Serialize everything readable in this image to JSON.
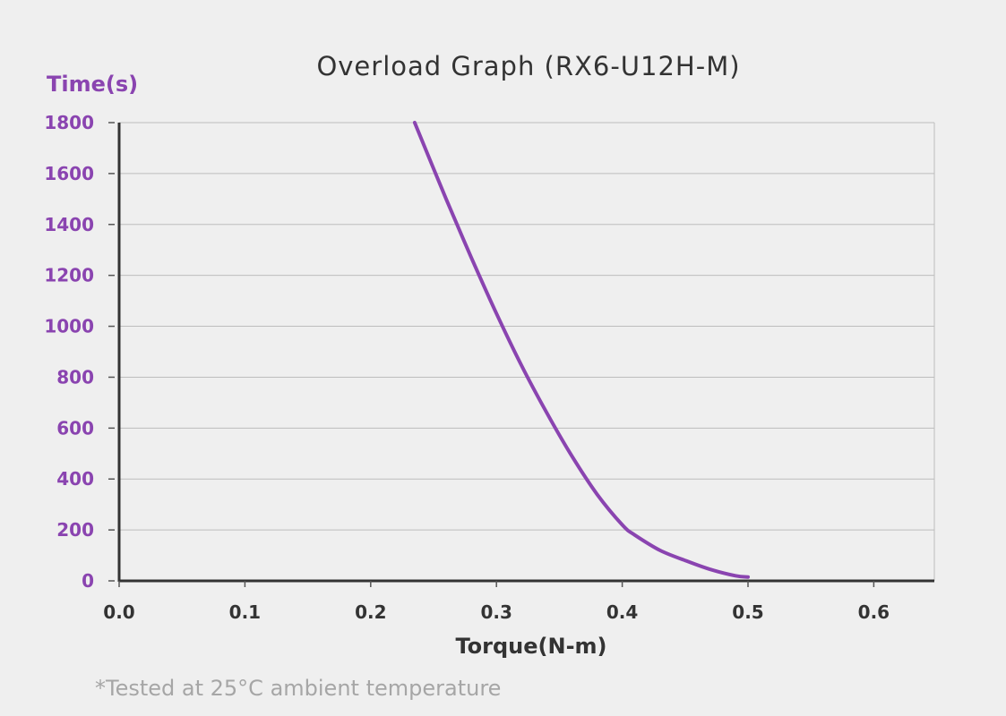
{
  "chart_data": {
    "type": "line",
    "title": "Overload Graph  (RX6-U12H-M)",
    "xlabel": "Torque(N-m)",
    "ylabel": "Time(s)",
    "xlim": [
      0,
      0.65
    ],
    "ylim": [
      0,
      1800
    ],
    "x_ticks": [
      "0.0",
      "0.1",
      "0.2",
      "0.3",
      "0.4",
      "0.5",
      "0.6"
    ],
    "y_ticks": [
      "0",
      "200",
      "400",
      "600",
      "800",
      "1000",
      "1200",
      "1400",
      "1600",
      "1800"
    ],
    "grid": "horizontal",
    "series": [
      {
        "x": [
          0.235,
          0.26,
          0.28,
          0.3,
          0.32,
          0.34,
          0.36,
          0.38,
          0.4,
          0.41,
          0.43,
          0.45,
          0.47,
          0.49,
          0.5
        ],
        "y": [
          1800,
          1500,
          1270,
          1050,
          845,
          660,
          490,
          340,
          220,
          180,
          120,
          80,
          45,
          20,
          15
        ]
      }
    ],
    "footnote": "*Tested at 25°C ambient temperature"
  },
  "colors": {
    "background": "#efefef",
    "series": "#8a44b0",
    "y_axis_text": "#8a44b0",
    "x_axis_text": "#333333",
    "grid": "#bdbdbd",
    "footnote": "#a6a6a6"
  }
}
